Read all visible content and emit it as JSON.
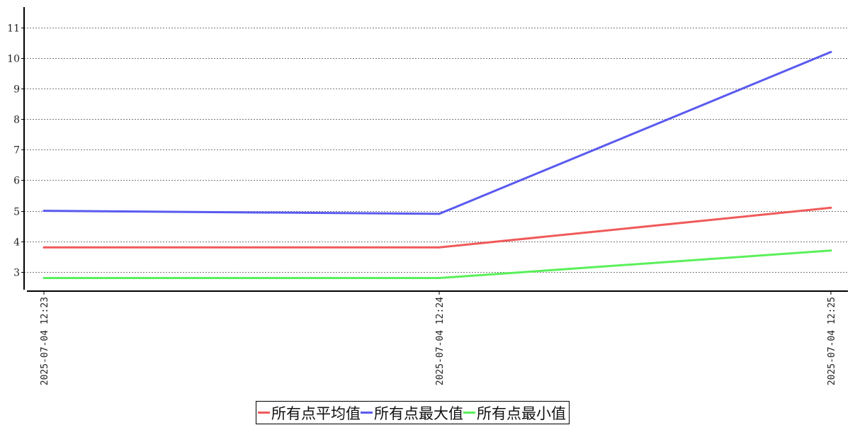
{
  "chart_data": {
    "type": "line",
    "title": "",
    "xlabel": "",
    "ylabel": "",
    "categories": [
      "2025-07-04 12:23",
      "2025-07-04 12:24",
      "2025-07-04 12:25"
    ],
    "series": [
      {
        "name": "所有点平均值",
        "color": "#f05a5a",
        "values": [
          3.8,
          3.8,
          5.1
        ]
      },
      {
        "name": "所有点最大值",
        "color": "#5a5af0",
        "values": [
          5.0,
          4.9,
          10.2
        ]
      },
      {
        "name": "所有点最小值",
        "color": "#5af05a",
        "values": [
          2.8,
          2.8,
          3.7
        ]
      }
    ],
    "ylim": [
      2.37,
      11.67
    ],
    "yticks": [
      "3",
      "4",
      "5",
      "6",
      "7",
      "8",
      "9",
      "10",
      "11"
    ],
    "grid": "horizontal dashed",
    "legend": "bottom-center"
  }
}
